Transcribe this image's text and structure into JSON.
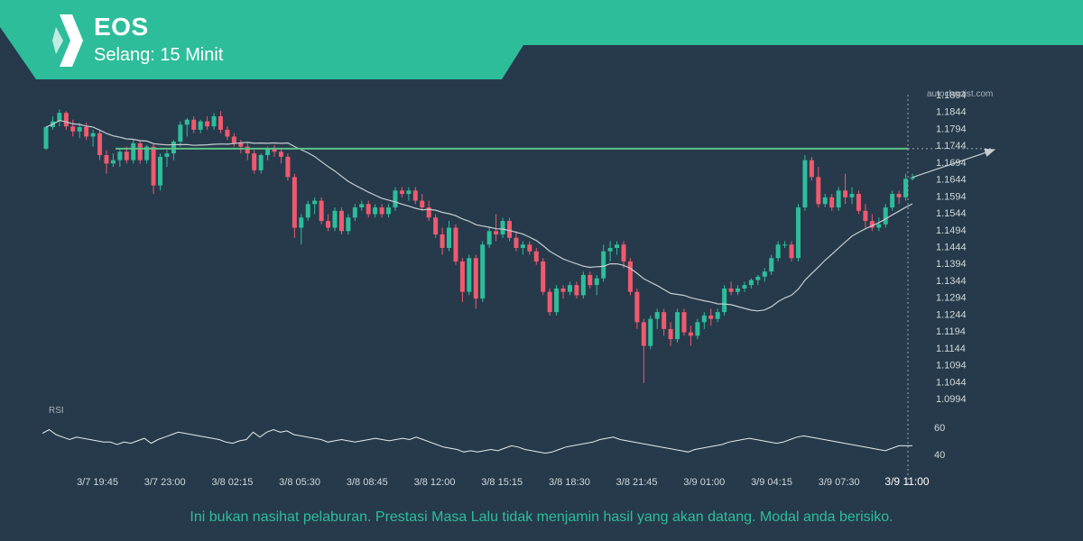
{
  "header": {
    "title": "EOS",
    "subtitle": "Selang: 15 Minit",
    "watermark": "autochartist.com",
    "accent_color": "#2ebd9b"
  },
  "footer": {
    "disclaimer": "Ini bukan nasihat pelaburan. Prestasi Masa Lalu tidak menjamin hasil yang akan datang. Modal anda berisiko."
  },
  "chart_data": {
    "type": "candlestick",
    "price_axis": {
      "ticks": [
        "1.1894",
        "1.1844",
        "1.1794",
        "1.1744",
        "1.1694",
        "1.1644",
        "1.1594",
        "1.1544",
        "1.1494",
        "1.1444",
        "1.1394",
        "1.1344",
        "1.1294",
        "1.1244",
        "1.1194",
        "1.1144",
        "1.1094",
        "1.1044",
        "1.0994"
      ],
      "range": [
        1.0994,
        1.1894
      ]
    },
    "time_axis": {
      "labels": [
        "3/7 19:45",
        "3/7 23:00",
        "3/8 02:15",
        "3/8 05:30",
        "3/8 08:45",
        "3/8 12:00",
        "3/8 15:15",
        "3/8 18:30",
        "3/8 21:45",
        "3/9 01:00",
        "3/9 04:15",
        "3/9 07:30"
      ],
      "current_label": "3/9 11:00"
    },
    "resistance_level": 1.1734,
    "projection": {
      "from": 1.1649,
      "to": 1.1734
    },
    "colors": {
      "up": "#2ebd9b",
      "down": "#ef5a6f",
      "moving_average": "#c7ced3",
      "level": "#5fc18a"
    },
    "candles": [
      [
        1.1734,
        1.18,
        1.173,
        1.1798
      ],
      [
        1.1798,
        1.183,
        1.179,
        1.1815
      ],
      [
        1.1815,
        1.185,
        1.18,
        1.184
      ],
      [
        1.184,
        1.1845,
        1.179,
        1.18
      ],
      [
        1.18,
        1.182,
        1.177,
        1.1785
      ],
      [
        1.1785,
        1.181,
        1.1765,
        1.1798
      ],
      [
        1.1798,
        1.1812,
        1.176,
        1.177
      ],
      [
        1.177,
        1.179,
        1.174,
        1.178
      ],
      [
        1.178,
        1.179,
        1.17,
        1.1715
      ],
      [
        1.1715,
        1.173,
        1.166,
        1.169
      ],
      [
        1.169,
        1.172,
        1.168,
        1.17
      ],
      [
        1.17,
        1.173,
        1.168,
        1.1725
      ],
      [
        1.1725,
        1.174,
        1.169,
        1.17
      ],
      [
        1.17,
        1.176,
        1.169,
        1.175
      ],
      [
        1.175,
        1.176,
        1.169,
        1.17
      ],
      [
        1.17,
        1.1745,
        1.169,
        1.174
      ],
      [
        1.174,
        1.175,
        1.16,
        1.1625
      ],
      [
        1.1625,
        1.172,
        1.161,
        1.171
      ],
      [
        1.171,
        1.173,
        1.168,
        1.172
      ],
      [
        1.172,
        1.176,
        1.17,
        1.1755
      ],
      [
        1.1755,
        1.1815,
        1.174,
        1.1805
      ],
      [
        1.1805,
        1.1825,
        1.177,
        1.182
      ],
      [
        1.182,
        1.183,
        1.178,
        1.179
      ],
      [
        1.179,
        1.182,
        1.178,
        1.1815
      ],
      [
        1.1815,
        1.183,
        1.179,
        1.18
      ],
      [
        1.18,
        1.184,
        1.179,
        1.183
      ],
      [
        1.183,
        1.1845,
        1.178,
        1.179
      ],
      [
        1.179,
        1.18,
        1.176,
        1.177
      ],
      [
        1.177,
        1.178,
        1.174,
        1.175
      ],
      [
        1.175,
        1.176,
        1.172,
        1.174
      ],
      [
        1.174,
        1.175,
        1.17,
        1.172
      ],
      [
        1.172,
        1.173,
        1.166,
        1.167
      ],
      [
        1.167,
        1.172,
        1.166,
        1.1715
      ],
      [
        1.1715,
        1.174,
        1.17,
        1.1735
      ],
      [
        1.1735,
        1.1745,
        1.171,
        1.1725
      ],
      [
        1.1725,
        1.1735,
        1.169,
        1.171
      ],
      [
        1.171,
        1.172,
        1.164,
        1.165
      ],
      [
        1.165,
        1.166,
        1.147,
        1.15
      ],
      [
        1.15,
        1.154,
        1.145,
        1.153
      ],
      [
        1.153,
        1.158,
        1.152,
        1.157
      ],
      [
        1.157,
        1.159,
        1.154,
        1.158
      ],
      [
        1.158,
        1.159,
        1.151,
        1.152
      ],
      [
        1.152,
        1.154,
        1.149,
        1.15
      ],
      [
        1.15,
        1.156,
        1.149,
        1.155
      ],
      [
        1.155,
        1.156,
        1.148,
        1.149
      ],
      [
        1.149,
        1.154,
        1.148,
        1.153
      ],
      [
        1.153,
        1.157,
        1.152,
        1.156
      ],
      [
        1.156,
        1.158,
        1.155,
        1.157
      ],
      [
        1.157,
        1.158,
        1.153,
        1.154
      ],
      [
        1.154,
        1.157,
        1.153,
        1.156
      ],
      [
        1.156,
        1.157,
        1.153,
        1.154
      ],
      [
        1.154,
        1.157,
        1.153,
        1.156
      ],
      [
        1.156,
        1.162,
        1.155,
        1.161
      ],
      [
        1.161,
        1.162,
        1.159,
        1.16
      ],
      [
        1.16,
        1.162,
        1.158,
        1.161
      ],
      [
        1.161,
        1.162,
        1.157,
        1.158
      ],
      [
        1.158,
        1.16,
        1.155,
        1.156
      ],
      [
        1.156,
        1.158,
        1.152,
        1.153
      ],
      [
        1.153,
        1.154,
        1.147,
        1.148
      ],
      [
        1.148,
        1.15,
        1.142,
        1.144
      ],
      [
        1.144,
        1.152,
        1.143,
        1.15
      ],
      [
        1.15,
        1.151,
        1.139,
        1.14
      ],
      [
        1.14,
        1.141,
        1.128,
        1.131
      ],
      [
        1.131,
        1.142,
        1.13,
        1.141
      ],
      [
        1.141,
        1.142,
        1.126,
        1.129
      ],
      [
        1.129,
        1.146,
        1.128,
        1.145
      ],
      [
        1.145,
        1.15,
        1.144,
        1.149
      ],
      [
        1.149,
        1.154,
        1.146,
        1.148
      ],
      [
        1.148,
        1.153,
        1.147,
        1.152
      ],
      [
        1.152,
        1.153,
        1.146,
        1.147
      ],
      [
        1.147,
        1.149,
        1.143,
        1.144
      ],
      [
        1.144,
        1.146,
        1.142,
        1.145
      ],
      [
        1.145,
        1.146,
        1.142,
        1.143
      ],
      [
        1.143,
        1.144,
        1.139,
        1.14
      ],
      [
        1.14,
        1.141,
        1.13,
        1.131
      ],
      [
        1.131,
        1.132,
        1.124,
        1.125
      ],
      [
        1.125,
        1.133,
        1.124,
        1.132
      ],
      [
        1.132,
        1.133,
        1.129,
        1.131
      ],
      [
        1.131,
        1.134,
        1.13,
        1.133
      ],
      [
        1.133,
        1.134,
        1.129,
        1.13
      ],
      [
        1.13,
        1.137,
        1.129,
        1.136
      ],
      [
        1.136,
        1.137,
        1.132,
        1.133
      ],
      [
        1.133,
        1.136,
        1.13,
        1.135
      ],
      [
        1.135,
        1.145,
        1.134,
        1.143
      ],
      [
        1.143,
        1.146,
        1.14,
        1.144
      ],
      [
        1.144,
        1.146,
        1.142,
        1.145
      ],
      [
        1.145,
        1.146,
        1.138,
        1.14
      ],
      [
        1.14,
        1.141,
        1.13,
        1.131
      ],
      [
        1.131,
        1.132,
        1.12,
        1.122
      ],
      [
        1.122,
        1.123,
        1.104,
        1.115
      ],
      [
        1.115,
        1.124,
        1.114,
        1.123
      ],
      [
        1.123,
        1.126,
        1.12,
        1.125
      ],
      [
        1.125,
        1.126,
        1.118,
        1.12
      ],
      [
        1.12,
        1.122,
        1.115,
        1.117
      ],
      [
        1.117,
        1.126,
        1.116,
        1.125
      ],
      [
        1.125,
        1.126,
        1.118,
        1.119
      ],
      [
        1.119,
        1.121,
        1.115,
        1.118
      ],
      [
        1.118,
        1.123,
        1.117,
        1.122
      ],
      [
        1.122,
        1.125,
        1.12,
        1.124
      ],
      [
        1.124,
        1.126,
        1.121,
        1.123
      ],
      [
        1.123,
        1.126,
        1.122,
        1.125
      ],
      [
        1.125,
        1.133,
        1.124,
        1.132
      ],
      [
        1.132,
        1.134,
        1.13,
        1.131
      ],
      [
        1.131,
        1.133,
        1.13,
        1.132
      ],
      [
        1.132,
        1.134,
        1.131,
        1.133
      ],
      [
        1.133,
        1.135,
        1.132,
        1.1345
      ],
      [
        1.1345,
        1.136,
        1.133,
        1.1355
      ],
      [
        1.1355,
        1.138,
        1.134,
        1.137
      ],
      [
        1.137,
        1.142,
        1.136,
        1.141
      ],
      [
        1.141,
        1.146,
        1.14,
        1.145
      ],
      [
        1.145,
        1.146,
        1.144,
        1.145
      ],
      [
        1.145,
        1.146,
        1.14,
        1.141
      ],
      [
        1.141,
        1.157,
        1.14,
        1.156
      ],
      [
        1.156,
        1.1715,
        1.155,
        1.17
      ],
      [
        1.17,
        1.171,
        1.164,
        1.165
      ],
      [
        1.165,
        1.168,
        1.156,
        1.157
      ],
      [
        1.157,
        1.16,
        1.156,
        1.159
      ],
      [
        1.159,
        1.16,
        1.155,
        1.156
      ],
      [
        1.156,
        1.162,
        1.155,
        1.161
      ],
      [
        1.161,
        1.166,
        1.157,
        1.159
      ],
      [
        1.159,
        1.162,
        1.157,
        1.16
      ],
      [
        1.16,
        1.161,
        1.154,
        1.155
      ],
      [
        1.155,
        1.157,
        1.15,
        1.152
      ],
      [
        1.152,
        1.154,
        1.149,
        1.15
      ],
      [
        1.15,
        1.153,
        1.149,
        1.151
      ],
      [
        1.151,
        1.157,
        1.15,
        1.156
      ],
      [
        1.156,
        1.161,
        1.155,
        1.16
      ],
      [
        1.16,
        1.161,
        1.157,
        1.159
      ],
      [
        1.159,
        1.166,
        1.158,
        1.1645
      ],
      [
        1.1645,
        1.166,
        1.164,
        1.1649
      ]
    ],
    "rsi": {
      "label": "RSI",
      "ticks": [
        "60",
        "40"
      ],
      "values": [
        55,
        58,
        54,
        52,
        50,
        52,
        51,
        50,
        49,
        48,
        48,
        46,
        48,
        47,
        49,
        51,
        47,
        50,
        52,
        54,
        56,
        55,
        54,
        53,
        52,
        51,
        50,
        48,
        47,
        49,
        50,
        56,
        52,
        56,
        58,
        56,
        57,
        54,
        53,
        52,
        51,
        50,
        48,
        49,
        50,
        49,
        48,
        49,
        50,
        51,
        50,
        49,
        50,
        51,
        50,
        52,
        50,
        48,
        46,
        44,
        43,
        42,
        40,
        41,
        40,
        41,
        42,
        41,
        43,
        45,
        44,
        42,
        41,
        40,
        39,
        40,
        42,
        44,
        45,
        46,
        47,
        48,
        50,
        51,
        52,
        50,
        49,
        48,
        47,
        46,
        45,
        44,
        43,
        42,
        41,
        40,
        42,
        43,
        44,
        45,
        46,
        48,
        49,
        50,
        51,
        50,
        49,
        48,
        47,
        48,
        50,
        52,
        53,
        52,
        51,
        50,
        49,
        48,
        47,
        46,
        45,
        44,
        43,
        42,
        41,
        43,
        45,
        45,
        45
      ]
    }
  }
}
